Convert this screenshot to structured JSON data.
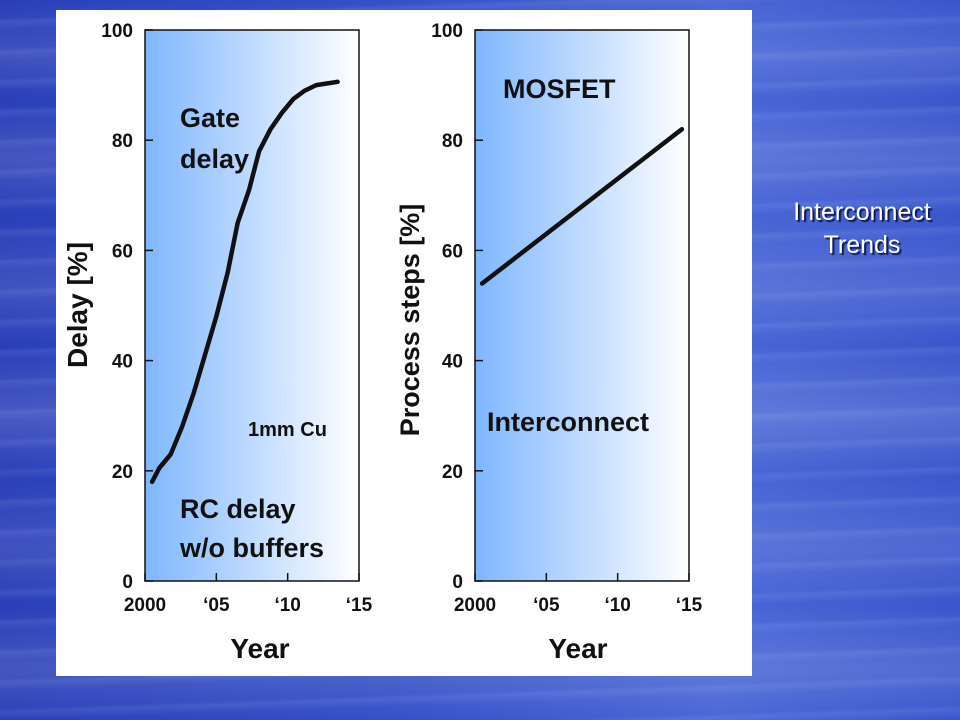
{
  "slide": {
    "title_line1": "Interconnect",
    "title_line2": "Trends",
    "colors": {
      "background": "#3550c8",
      "title_text": "#ffffff",
      "plot_gradient_left": "#7fb6ff",
      "plot_gradient_right": "#ffffff"
    }
  },
  "chart_data": [
    {
      "type": "line",
      "xlabel": "Year",
      "ylabel": "Delay [%]",
      "xlim": [
        2000,
        2015
      ],
      "ylim": [
        0,
        100
      ],
      "x_ticks": [
        2000,
        2005,
        2010,
        2015
      ],
      "x_tick_labels": [
        "2000",
        "‘05",
        "‘10",
        "‘15"
      ],
      "y_ticks": [
        0,
        20,
        40,
        60,
        80,
        100
      ],
      "y_tick_labels": [
        "0",
        "20",
        "40",
        "60",
        "80",
        "100"
      ],
      "annotations": [
        {
          "text_lines": [
            "Gate",
            "delay"
          ]
        },
        {
          "text_lines": [
            "1mm Cu"
          ]
        },
        {
          "text_lines": [
            "RC delay",
            "w/o buffers"
          ]
        }
      ],
      "series": [
        {
          "x": [
            2000.5,
            2001.0,
            2001.8,
            2002.6,
            2003.4,
            2004.2,
            2005.0,
            2005.8,
            2006.5,
            2007.3,
            2008.0,
            2008.8,
            2009.6,
            2010.4,
            2011.2,
            2012.0,
            2012.8,
            2013.5
          ],
          "y": [
            18,
            20.5,
            23,
            28,
            34,
            41,
            48,
            56,
            65,
            71,
            78,
            82,
            85,
            87.5,
            89,
            90,
            90.3,
            90.6
          ]
        }
      ]
    },
    {
      "type": "line",
      "xlabel": "Year",
      "ylabel": "Process steps [%]",
      "xlim": [
        2000,
        2015
      ],
      "ylim": [
        0,
        100
      ],
      "x_ticks": [
        2000,
        2005,
        2010,
        2015
      ],
      "x_tick_labels": [
        "2000",
        "‘05",
        "‘10",
        "‘15"
      ],
      "y_ticks": [
        0,
        20,
        40,
        60,
        80,
        100
      ],
      "y_tick_labels": [
        "0",
        "20",
        "40",
        "60",
        "80",
        "100"
      ],
      "annotations": [
        {
          "text_lines": [
            "MOSFET"
          ]
        },
        {
          "text_lines": [
            "Interconnect"
          ]
        }
      ],
      "series": [
        {
          "x": [
            2000.5,
            2014.5
          ],
          "y": [
            54,
            82
          ]
        }
      ]
    }
  ]
}
